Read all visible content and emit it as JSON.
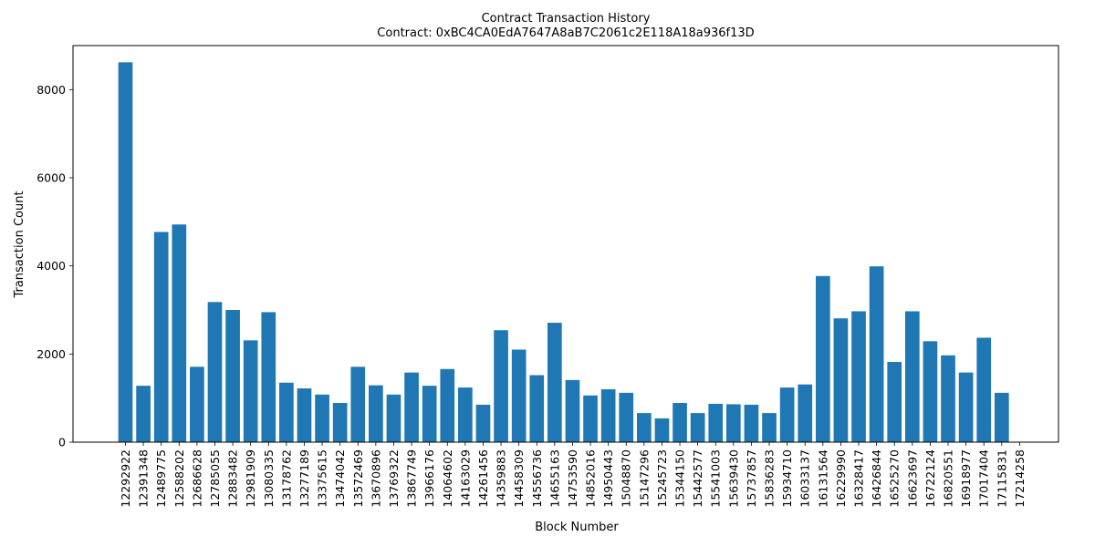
{
  "chart_data": {
    "type": "bar",
    "title": "Contract Transaction History",
    "subtitle": "Contract: 0xBC4CA0EdA7647A8aB7C2061c2E118A18a936f13D",
    "xlabel": "Block Number",
    "ylabel": "Transaction Count",
    "ylim": [
      0,
      9000
    ],
    "yticks": [
      0,
      2000,
      4000,
      6000,
      8000
    ],
    "grid": false,
    "bar_color": "#1f77b4",
    "categories": [
      "12292922",
      "12391348",
      "12489775",
      "12588202",
      "12686628",
      "12785055",
      "12883482",
      "12981909",
      "13080335",
      "13178762",
      "13277189",
      "13375615",
      "13474042",
      "13572469",
      "13670896",
      "13769322",
      "13867749",
      "13966176",
      "14064602",
      "14163029",
      "14261456",
      "14359883",
      "14458309",
      "14556736",
      "14655163",
      "14753590",
      "14852016",
      "14950443",
      "15048870",
      "15147296",
      "15245723",
      "15344150",
      "15442577",
      "15541003",
      "15639430",
      "15737857",
      "15836283",
      "15934710",
      "16033137",
      "16131564",
      "16229990",
      "16328417",
      "16426844",
      "16525270",
      "16623697",
      "16722124",
      "16820551",
      "16918977",
      "17017404",
      "17115831",
      "17214258"
    ],
    "values": [
      8620,
      1280,
      4770,
      4940,
      1710,
      3180,
      3000,
      2310,
      2950,
      1350,
      1220,
      1080,
      890,
      1710,
      1290,
      1080,
      1580,
      1280,
      1660,
      1240,
      850,
      2540,
      2100,
      1520,
      2710,
      1410,
      1060,
      1200,
      1120,
      660,
      540,
      890,
      660,
      870,
      860,
      850,
      660,
      1240,
      1310,
      3770,
      2810,
      2970,
      3990,
      1820,
      2970,
      2290,
      1970,
      1580,
      2370,
      1120,
      0
    ]
  }
}
